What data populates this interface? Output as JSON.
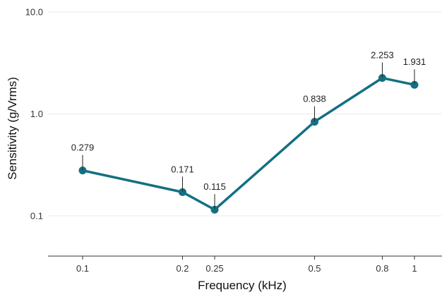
{
  "chart_data": {
    "type": "line",
    "xlabel": "Frequency (kHz)",
    "ylabel": "Sensitivity (g/Vrms)",
    "x_scale": "log",
    "y_scale": "log",
    "xlim": [
      0.08,
      1.25
    ],
    "ylim": [
      0.04,
      10.0
    ],
    "x_ticks": [
      0.1,
      0.2,
      0.25,
      0.5,
      0.8,
      1
    ],
    "x_tick_labels": [
      "0.1",
      "0.2",
      "0.25",
      "0.5",
      "0.8",
      "1"
    ],
    "y_ticks": [
      0.1,
      1.0,
      10.0
    ],
    "y_tick_labels": [
      "0.1",
      "1.0",
      "10.0"
    ],
    "grid": "horizontal",
    "legend": "none",
    "series": [
      {
        "color": "#137082",
        "x": [
          0.1,
          0.2,
          0.25,
          0.5,
          0.8,
          1
        ],
        "values": [
          0.279,
          0.171,
          0.115,
          0.838,
          2.253,
          1.931
        ],
        "labels": [
          "0.279",
          "0.171",
          "0.115",
          "0.838",
          "2.253",
          "1.931"
        ]
      }
    ]
  }
}
